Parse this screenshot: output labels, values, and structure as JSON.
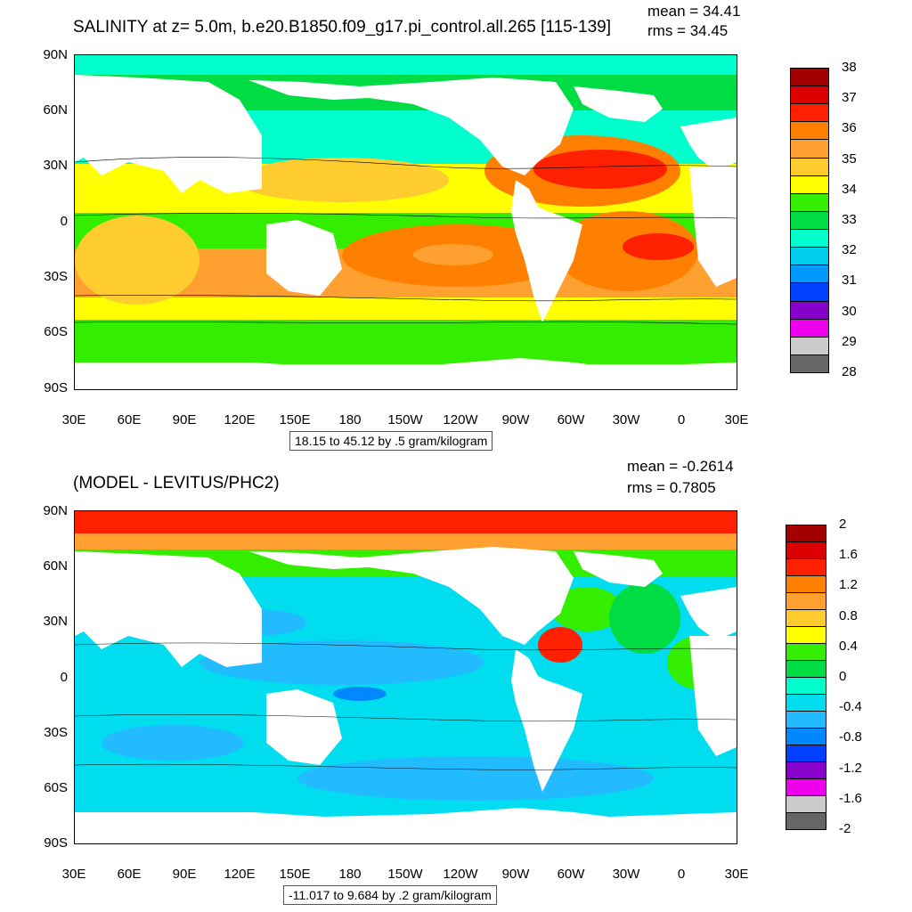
{
  "top": {
    "title": "SALINITY at z=   5.0m, b.e20.B1850.f09_g17.pi_control.all.265 [115-139]",
    "mean": "mean = 34.41",
    "rms": "rms = 34.45",
    "range": "18.15 to 45.12 by .5 gram/kilogram",
    "colorbar": {
      "labels": [
        "38",
        "37",
        "36",
        "35",
        "34",
        "33",
        "32",
        "31",
        "30",
        "29",
        "28"
      ],
      "colors": [
        "#a50000",
        "#dc0000",
        "#ff2000",
        "#ff8000",
        "#ffa030",
        "#ffcc30",
        "#ffff00",
        "#33ee00",
        "#00dd44",
        "#00ffcc",
        "#00ccee",
        "#0099ff",
        "#0040ff",
        "#8800cc",
        "#ee00ee",
        "#cccccc",
        "#666666"
      ]
    }
  },
  "bottom": {
    "title": "(MODEL - LEVITUS/PHC2)",
    "mean": "mean = -0.2614",
    "rms": "rms = 0.7805",
    "range": "-11.017 to 9.684 by .2 gram/kilogram",
    "colorbar": {
      "labels": [
        "2",
        "1.6",
        "1.2",
        "0.8",
        "0.4",
        "0",
        "-0.4",
        "-0.8",
        "-1.2",
        "-1.6",
        "-2"
      ],
      "colors": [
        "#a50000",
        "#dc0000",
        "#ff2000",
        "#ff8000",
        "#ffa030",
        "#ffcc30",
        "#ffff00",
        "#33ee00",
        "#00dd44",
        "#00ffcc",
        "#00ddee",
        "#22bbff",
        "#0088ff",
        "#0040ff",
        "#8800cc",
        "#ee00ee",
        "#cccccc",
        "#666666"
      ]
    }
  },
  "lat_labels": [
    "90N",
    "60N",
    "30N",
    "0",
    "30S",
    "60S",
    "90S"
  ],
  "lon_labels": [
    "30E",
    "60E",
    "90E",
    "120E",
    "150E",
    "180",
    "150W",
    "120W",
    "90W",
    "60W",
    "30W",
    "0",
    "30E"
  ],
  "colors": {
    "land": "#ffffff",
    "contour": "#000000"
  }
}
